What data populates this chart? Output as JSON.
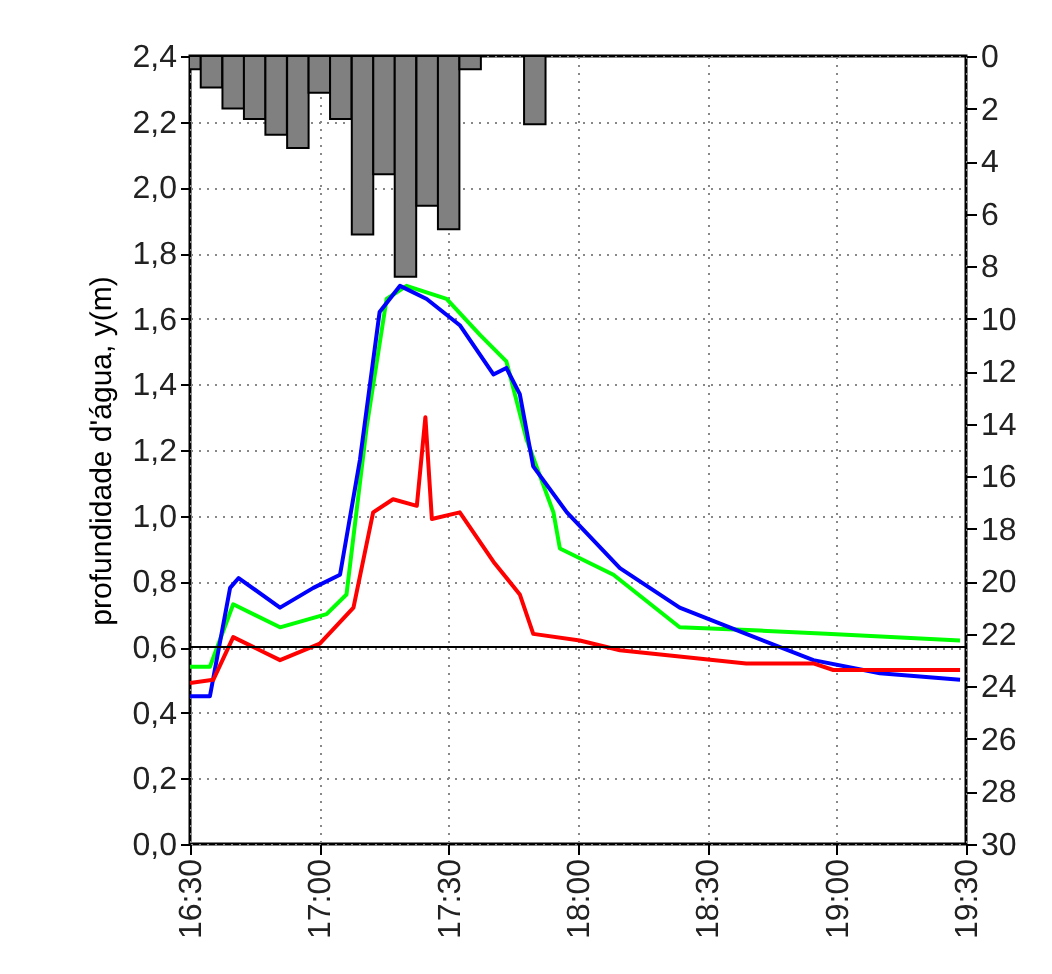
{
  "chart_data": {
    "type": "line",
    "ylabel": "profundidade d'água, y(m)",
    "xlim": [
      16.5,
      19.5
    ],
    "xticks": [
      {
        "value": 16.5,
        "label": "16:30"
      },
      {
        "value": 17,
        "label": "17:00"
      },
      {
        "value": 17.5,
        "label": "17:30"
      },
      {
        "value": 18,
        "label": "18:00"
      },
      {
        "value": 18.5,
        "label": "18:30"
      },
      {
        "value": 19,
        "label": "19:00"
      },
      {
        "value": 19.5,
        "label": "19:30"
      }
    ],
    "ylim": [
      0,
      2.4
    ],
    "yticks": [
      {
        "value": 0,
        "label": "0,0"
      },
      {
        "value": 0.2,
        "label": "0,2"
      },
      {
        "value": 0.4,
        "label": "0,4"
      },
      {
        "value": 0.6,
        "label": "0,6"
      },
      {
        "value": 0.8,
        "label": "0,8"
      },
      {
        "value": 1,
        "label": "1,0"
      },
      {
        "value": 1.2,
        "label": "1,2"
      },
      {
        "value": 1.4,
        "label": "1,4"
      },
      {
        "value": 1.6,
        "label": "1,6"
      },
      {
        "value": 1.8,
        "label": "1,8"
      },
      {
        "value": 2,
        "label": "2,0"
      },
      {
        "value": 2.2,
        "label": "2,2"
      },
      {
        "value": 2.4,
        "label": "2,4"
      }
    ],
    "y2lim": [
      30,
      0
    ],
    "y2ticks": [
      0,
      2,
      4,
      6,
      8,
      10,
      12,
      14,
      16,
      18,
      20,
      22,
      24,
      26,
      28,
      30
    ],
    "grid": true,
    "marker": "none",
    "line_style": "solid",
    "ref_lines": [
      {
        "axis": "y",
        "value": 0.6,
        "color": "#000000"
      }
    ],
    "series": [
      {
        "type": "bar",
        "axis": "y2",
        "color": "#808080",
        "x": [
          16.5,
          16.583,
          16.667,
          16.75,
          16.833,
          16.917,
          17,
          17.083,
          17.167,
          17.25,
          17.333,
          17.417,
          17.5,
          17.583,
          17.833
        ],
        "values": [
          0.5,
          1.2,
          2.0,
          2.4,
          3.0,
          3.5,
          1.4,
          2.4,
          6.8,
          4.5,
          8.4,
          5.7,
          6.6,
          0.5,
          2.6
        ]
      },
      {
        "color": "#00ff00",
        "x": [
          16.5,
          16.577,
          16.667,
          16.848,
          17.028,
          17.105,
          17.183,
          17.26,
          17.337,
          17.492,
          17.622,
          17.723,
          17.802,
          17.905,
          17.93,
          18.137,
          18.393,
          18.703,
          18.96,
          19.477
        ],
        "values": [
          0.54,
          0.54,
          0.73,
          0.66,
          0.7,
          0.76,
          1.27,
          1.66,
          1.7,
          1.66,
          1.55,
          1.47,
          1.23,
          1.01,
          0.9,
          0.82,
          0.66,
          0.65,
          0.64,
          0.62
        ]
      },
      {
        "color": "#0000ff",
        "x": [
          16.5,
          16.577,
          16.655,
          16.688,
          16.848,
          16.977,
          17.08,
          17.157,
          17.233,
          17.312,
          17.415,
          17.543,
          17.673,
          17.723,
          17.775,
          17.827,
          17.957,
          18.162,
          18.393,
          18.65,
          18.91,
          19.167,
          19.477
        ],
        "values": [
          0.45,
          0.45,
          0.78,
          0.81,
          0.72,
          0.78,
          0.82,
          1.17,
          1.62,
          1.7,
          1.66,
          1.58,
          1.43,
          1.45,
          1.37,
          1.15,
          1.01,
          0.84,
          0.72,
          0.64,
          0.56,
          0.52,
          0.5
        ]
      },
      {
        "color": "#ff0000",
        "x": [
          16.5,
          16.59,
          16.667,
          16.848,
          17.002,
          17.132,
          17.208,
          17.285,
          17.377,
          17.41,
          17.435,
          17.543,
          17.673,
          17.775,
          17.827,
          18.007,
          18.162,
          18.65,
          18.91,
          18.987,
          19.477
        ],
        "values": [
          0.49,
          0.5,
          0.63,
          0.56,
          0.61,
          0.72,
          1.01,
          1.05,
          1.03,
          1.3,
          0.99,
          1.01,
          0.86,
          0.76,
          0.64,
          0.62,
          0.59,
          0.55,
          0.55,
          0.53,
          0.53
        ]
      }
    ]
  }
}
